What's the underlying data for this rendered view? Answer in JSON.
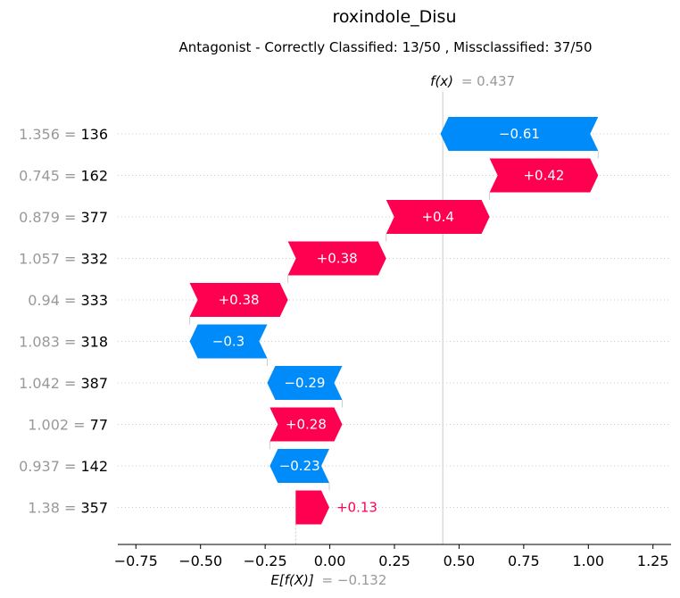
{
  "chart_data": {
    "type": "waterfall",
    "title": "roxindole_Disu",
    "subtitle": "Antagonist - Correctly Classified: 13/50 , Missclassified: 37/50",
    "fx": {
      "label_fn": "f(x)",
      "label_eq": "= 0.437",
      "value": 0.437
    },
    "expected": {
      "label_fn": "E[f(X)]",
      "label_eq": "= −0.132",
      "value": -0.132
    },
    "xlim": [
      -0.82,
      1.32
    ],
    "xticks": [
      {
        "value": -0.75,
        "label": "−0.75"
      },
      {
        "value": -0.5,
        "label": "−0.50"
      },
      {
        "value": -0.25,
        "label": "−0.25"
      },
      {
        "value": 0.0,
        "label": "0.00"
      },
      {
        "value": 0.25,
        "label": "0.25"
      },
      {
        "value": 0.5,
        "label": "0.50"
      },
      {
        "value": 0.75,
        "label": "0.75"
      },
      {
        "value": 1.0,
        "label": "1.00"
      },
      {
        "value": 1.25,
        "label": "1.25"
      }
    ],
    "features": [
      {
        "value_text": "1.356 =",
        "name": "136",
        "contribution": -0.61,
        "label": "−0.61"
      },
      {
        "value_text": "0.745 =",
        "name": "162",
        "contribution": 0.42,
        "label": "+0.42"
      },
      {
        "value_text": "0.879 =",
        "name": "377",
        "contribution": 0.4,
        "label": "+0.4"
      },
      {
        "value_text": "1.057 =",
        "name": "332",
        "contribution": 0.38,
        "label": "+0.38"
      },
      {
        "value_text": "0.94 =",
        "name": "333",
        "contribution": 0.38,
        "label": "+0.38"
      },
      {
        "value_text": "1.083 =",
        "name": "318",
        "contribution": -0.3,
        "label": "−0.3"
      },
      {
        "value_text": "1.042 =",
        "name": "387",
        "contribution": -0.29,
        "label": "−0.29"
      },
      {
        "value_text": "1.002 =",
        "name": "77",
        "contribution": 0.28,
        "label": "+0.28"
      },
      {
        "value_text": "0.937 =",
        "name": "142",
        "contribution": -0.23,
        "label": "−0.23"
      },
      {
        "value_text": "1.38 =",
        "name": "357",
        "contribution": 0.13,
        "label": "+0.13"
      }
    ],
    "colors": {
      "positive": "#ff0051",
      "negative": "#008bfb",
      "muted": "#999999",
      "grid": "#cccccc"
    }
  }
}
